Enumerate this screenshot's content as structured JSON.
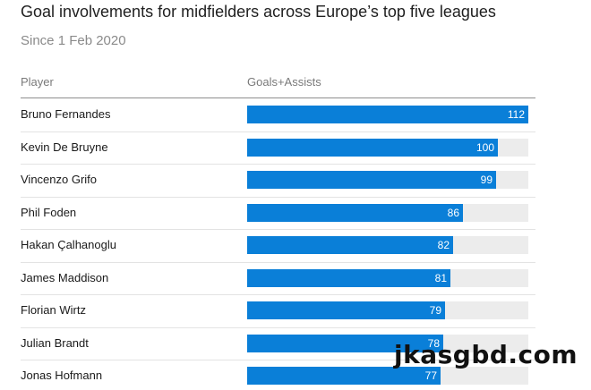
{
  "header": {
    "title": "Goal involvements for midfielders across Europe’s top five leagues",
    "subtitle": "Since 1 Feb 2020",
    "col_player": "Player",
    "col_metric": "Goals+Assists"
  },
  "watermark": "jkasgbd.com",
  "colors": {
    "bar": "#0a7fd8",
    "track": "#ececec"
  },
  "chart_data": {
    "type": "bar",
    "orientation": "horizontal",
    "title": "Goal involvements for midfielders across Europe’s top five leagues",
    "subtitle": "Since 1 Feb 2020",
    "xlabel": "Goals+Assists",
    "ylabel": "Player",
    "xlim": [
      0,
      112
    ],
    "categories": [
      "Bruno Fernandes",
      "Kevin De Bruyne",
      "Vincenzo Grifo",
      "Phil Foden",
      "Hakan Çalhanoglu",
      "James Maddison",
      "Florian Wirtz",
      "Julian Brandt",
      "Jonas Hofmann"
    ],
    "values": [
      112,
      100,
      99,
      86,
      82,
      81,
      79,
      78,
      77
    ],
    "data_labels": [
      "112",
      "100",
      "99",
      "86",
      "82",
      "81",
      "79",
      "78",
      "77"
    ],
    "grid": false
  }
}
